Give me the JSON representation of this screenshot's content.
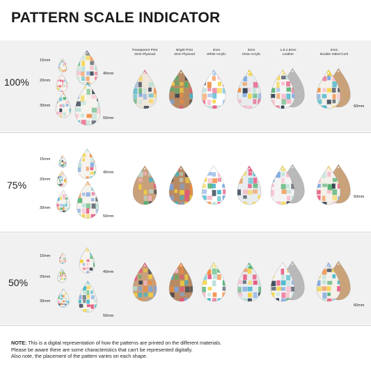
{
  "title": "PATTERN SCALE INDICATOR",
  "materials": [
    {
      "line1": "Transparent Print",
      "line2": "3mm Plywood"
    },
    {
      "line1": "Bright Print",
      "line2": "3mm Plywood"
    },
    {
      "line1": "3mm",
      "line2": "White Acrylic"
    },
    {
      "line1": "3mm",
      "line2": "Clear Acrylic"
    },
    {
      "line1": "1.6-1.8mm",
      "line2": "Leather"
    },
    {
      "line1": "2mm",
      "line2": "Double Sided Cork"
    }
  ],
  "sections": [
    {
      "scale": "100%",
      "size_labels": [
        "15mm",
        "20mm",
        "30mm",
        "40mm",
        "50mm"
      ],
      "big_label": "60mm"
    },
    {
      "scale": "75%",
      "size_labels": [
        "15mm",
        "20mm",
        "30mm",
        "40mm",
        "50mm"
      ],
      "big_label": "60mm"
    },
    {
      "scale": "50%",
      "size_labels": [
        "15mm",
        "20mm",
        "30mm",
        "40mm",
        "50mm"
      ],
      "big_label": "60mm"
    }
  ],
  "note": {
    "bold": "NOTE:",
    "line1": " This is a digital representation of how the patterns are printed on the different materials.",
    "line2": "Please be aware there are some characteristics that can't be represented digitally.",
    "line3": "Also note, the placement of the pattern varies on each shape."
  },
  "colors": {
    "band": "#f1f1f1",
    "plywood": "#b88a63",
    "cork": "#caa27a",
    "leather": "#b9b9b9",
    "pattern": [
      "#f4d23c",
      "#e8527a",
      "#3fb4c9",
      "#4caf6e",
      "#f08a3c",
      "#7aa6e0",
      "#b9e0d8",
      "#f7b7c8",
      "#2f3b4c"
    ]
  }
}
